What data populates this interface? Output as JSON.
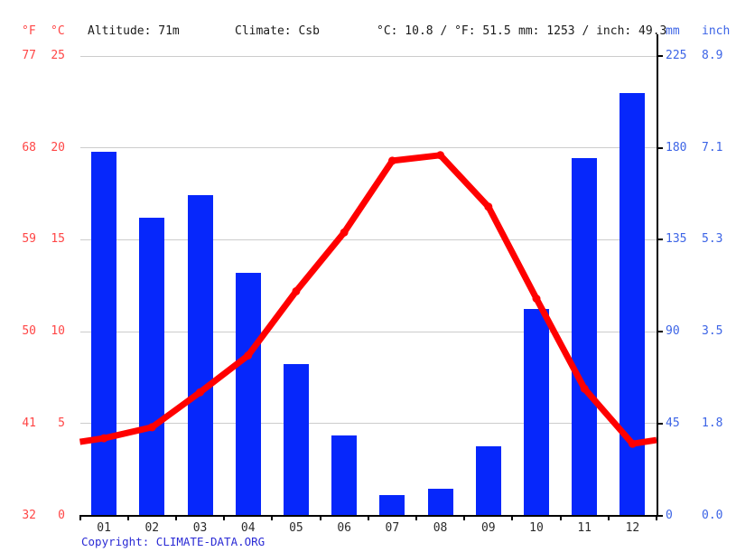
{
  "header": {
    "temp_unit_f": "°F",
    "temp_unit_c": "°C",
    "altitude_label": "Altitude: 71m",
    "climate_label": "Climate: Csb",
    "avg_temp_label": "°C: 10.8 / °F: 51.5",
    "precip_total_label": "mm: 1253 / inch: 49.3",
    "precip_unit_mm": "mm",
    "precip_unit_inch": "inch"
  },
  "axes": {
    "left_f_ticks": [
      "77",
      "68",
      "59",
      "50",
      "41",
      "32"
    ],
    "left_c_ticks": [
      "25",
      "20",
      "15",
      "10",
      "5",
      "0"
    ],
    "right_mm_ticks": [
      "225",
      "180",
      "135",
      "90",
      "45",
      "0"
    ],
    "right_inch_ticks": [
      "8.9",
      "7.1",
      "5.3",
      "3.5",
      "1.8",
      "0.0"
    ]
  },
  "chart_data": {
    "type": "bar+line",
    "categories": [
      "01",
      "02",
      "03",
      "04",
      "05",
      "06",
      "07",
      "08",
      "09",
      "10",
      "11",
      "12"
    ],
    "series": [
      {
        "name": "precipitation",
        "type": "bar",
        "unit": "mm",
        "color": "#0627fb",
        "values": [
          178,
          146,
          157,
          119,
          74,
          39,
          10,
          13,
          34,
          101,
          175,
          207
        ]
      },
      {
        "name": "temperature",
        "type": "line",
        "unit": "°C",
        "color": "#ff0000",
        "values": [
          4.2,
          4.8,
          6.7,
          8.7,
          12.2,
          15.4,
          19.3,
          19.6,
          16.8,
          11.8,
          6.9,
          3.9
        ],
        "edge_left_value": 4.0,
        "edge_right_value": 4.1
      }
    ],
    "ylim_temp_c": [
      0,
      25
    ],
    "ylim_temp_f": [
      32,
      77
    ],
    "ylim_precip_mm": [
      0,
      225
    ],
    "ylim_precip_inch": [
      0.0,
      8.9
    ],
    "grid": true,
    "legend_position": "none",
    "annotations": {
      "altitude_m": 71,
      "climate_class": "Csb",
      "mean_temp_c": 10.8,
      "mean_temp_f": 51.5,
      "annual_precip_mm": 1253,
      "annual_precip_inch": 49.3
    }
  },
  "colors": {
    "bar_blue": "#0627fb",
    "line_red": "#ff0000",
    "left_axis_red": "#ff4646",
    "right_axis_blue": "#3c64e6",
    "gridline": "#cccccc",
    "axis_black": "#000000",
    "link_blue": "#2b2bd5"
  },
  "footer": {
    "copyright_prefix": "Copyright: ",
    "link_text": "CLIMATE-DATA.ORG"
  }
}
